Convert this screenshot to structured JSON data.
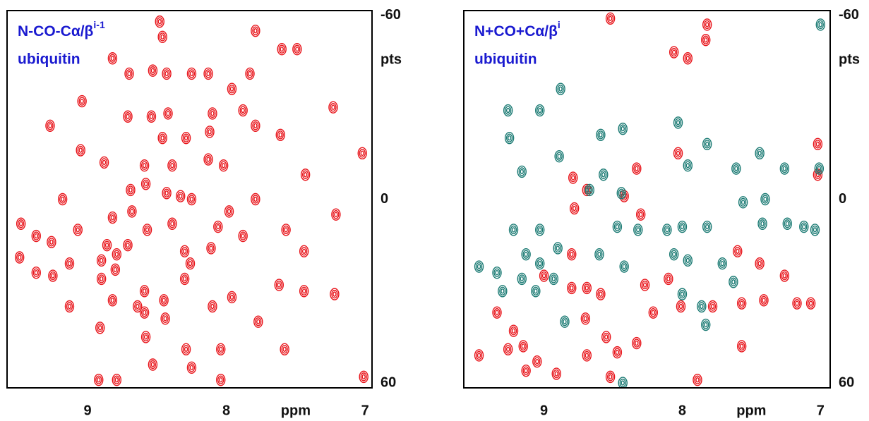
{
  "chart_data": [
    {
      "type": "scatter",
      "title": "N-CO-Cα/β",
      "title_sup": "i-1",
      "subtitle": "ubiquitin",
      "x_label": "ppm",
      "y_label": "pts",
      "xlim": [
        9.58,
        6.95
      ],
      "ylim": [
        -61.6,
        61.6
      ],
      "xticks": [
        9,
        8,
        7
      ],
      "yticks": [
        -60,
        0,
        60
      ],
      "series": [
        {
          "color": "#e8141a",
          "x": [
            8.48,
            8.46,
            7.79,
            7.6,
            7.49,
            8.82,
            8.7,
            8.53,
            8.43,
            8.25,
            8.13,
            7.96,
            7.83,
            9.04,
            8.71,
            8.54,
            8.42,
            8.1,
            7.88,
            7.23,
            7.79,
            7.61,
            9.27,
            8.46,
            8.29,
            8.12,
            9.05,
            8.88,
            8.59,
            8.39,
            8.13,
            8.02,
            7.43,
            7.02,
            8.69,
            8.43,
            8.58,
            8.33,
            8.25,
            7.79,
            9.18,
            8.82,
            8.68,
            7.98,
            7.21,
            9.48,
            9.37,
            9.26,
            9.07,
            8.57,
            8.39,
            8.06,
            7.88,
            7.57,
            8.86,
            8.71,
            8.3,
            8.11,
            7.44,
            9.49,
            9.13,
            8.9,
            8.79,
            8.26,
            9.37,
            9.25,
            8.9,
            8.8,
            8.59,
            8.3,
            7.96,
            7.62,
            7.44,
            7.22,
            9.13,
            8.82,
            8.64,
            8.45,
            8.1,
            8.91,
            8.58,
            8.44,
            8.29,
            8.04,
            7.58,
            8.53,
            8.25,
            8.92,
            8.79,
            8.04,
            7.01,
            7.77,
            8.59
          ],
          "values": [
            -58,
            -53,
            -55,
            -49,
            -49,
            -46,
            -41,
            -42,
            -41,
            -41,
            -41,
            -36,
            -41,
            -32,
            -27,
            -27,
            -28,
            -28,
            -29,
            -30,
            -24,
            -21,
            -24,
            -20,
            -20,
            -22,
            -16,
            -12,
            -11,
            -11,
            -13,
            -11,
            -8,
            -15,
            -3,
            -2,
            -5,
            -1,
            0,
            0,
            0,
            6,
            4,
            4,
            5,
            8,
            12,
            14,
            10,
            10,
            8,
            9,
            12,
            10,
            15,
            15,
            17,
            16,
            17,
            19,
            21,
            20,
            18,
            21,
            24,
            25,
            26,
            23,
            30,
            26,
            32,
            28,
            30,
            31,
            35,
            33,
            35,
            33,
            35,
            42,
            45,
            39,
            49,
            49,
            49,
            54,
            55,
            59,
            59,
            59,
            58,
            40,
            37
          ]
        }
      ]
    },
    {
      "type": "scatter",
      "title": "N+CO+Cα/β",
      "title_sup": "i",
      "subtitle": "ubiquitin",
      "x_label": "ppm",
      "y_label": "pts",
      "xlim": [
        9.58,
        6.93
      ],
      "ylim": [
        -61.6,
        61.6
      ],
      "xticks": [
        9,
        8,
        7
      ],
      "yticks": [
        -60,
        0,
        60
      ],
      "series": [
        {
          "color": "#e8141a",
          "x": [
            8.52,
            7.82,
            8.06,
            7.96,
            7.83,
            7.02,
            8.03,
            8.33,
            8.79,
            8.69,
            8.78,
            8.42,
            8.3,
            7.02,
            7.6,
            7.44,
            7.26,
            8.8,
            9.0,
            8.8,
            8.69,
            8.59,
            8.7,
            8.55,
            8.47,
            8.33,
            8.21,
            8.01,
            7.78,
            7.57,
            7.41,
            7.17,
            7.07,
            9.34,
            9.47,
            9.26,
            9.13,
            9.05,
            8.91,
            8.69,
            8.52,
            7.89,
            7.57,
            9.22,
            9.15,
            8.1,
            8.27
          ],
          "values": [
            -59,
            -57,
            -48,
            -46,
            -52,
            -18,
            -15,
            -10,
            -7,
            -3,
            3,
            -1,
            5,
            -8,
            17,
            21,
            25,
            18,
            25,
            29,
            29,
            31,
            39,
            45,
            50,
            47,
            37,
            35,
            35,
            34,
            33,
            34,
            34,
            37,
            51,
            49,
            56,
            53,
            57,
            51,
            58,
            59,
            48,
            43,
            48,
            26,
            28
          ]
        },
        {
          "color": "#1a7a73",
          "x": [
            8.88,
            9.26,
            9.03,
            9.25,
            8.59,
            8.43,
            8.03,
            7.82,
            7.44,
            8.89,
            9.16,
            8.57,
            8.44,
            7.96,
            7.61,
            7.26,
            7.01,
            8.67,
            7.56,
            7.4,
            9.22,
            9.03,
            8.47,
            8.32,
            8.11,
            8.0,
            7.82,
            7.42,
            7.24,
            7.12,
            7.04,
            8.9,
            9.13,
            9.03,
            9.47,
            9.34,
            8.42,
            8.06,
            7.96,
            7.71,
            9.16,
            9.06,
            8.93,
            8.0,
            7.86,
            7.63,
            9.3,
            8.6,
            8.85,
            7.83,
            8.43,
            7.0
          ],
          "values": [
            -36,
            -29,
            -29,
            -20,
            -21,
            -23,
            -25,
            -18,
            -15,
            -14,
            -9,
            -8,
            -2,
            -11,
            -10,
            -10,
            -10,
            -3,
            1,
            0,
            10,
            10,
            9,
            10,
            10,
            9,
            9,
            8,
            8,
            9,
            10,
            16,
            18,
            21,
            22,
            24,
            22,
            18,
            20,
            21,
            26,
            30,
            26,
            31,
            35,
            27,
            30,
            18,
            40,
            41,
            60,
            -57
          ]
        }
      ]
    }
  ]
}
